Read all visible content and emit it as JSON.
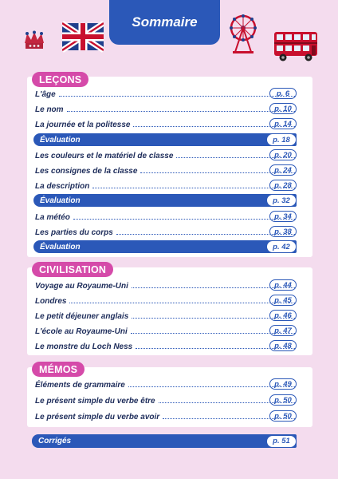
{
  "header": {
    "title": "Sommaire"
  },
  "sections": {
    "lecons": {
      "label": "LEÇONS",
      "items": [
        {
          "title": "L'âge",
          "page": "p. 6"
        },
        {
          "title": "Le nom",
          "page": "p. 10"
        },
        {
          "title": "La journée et la politesse",
          "page": "p. 14"
        },
        {
          "title": "Évaluation",
          "page": "p. 18"
        },
        {
          "title": "Les couleurs et le matériel de classe",
          "page": "p. 20"
        },
        {
          "title": "Les consignes de la classe",
          "page": "p. 24"
        },
        {
          "title": "La description",
          "page": "p. 28"
        },
        {
          "title": "Évaluation",
          "page": "p. 32"
        },
        {
          "title": "La météo",
          "page": "p. 34"
        },
        {
          "title": "Les parties du corps",
          "page": "p. 38"
        },
        {
          "title": "Évaluation",
          "page": "p. 42"
        }
      ]
    },
    "civilisation": {
      "label": "CIVILISATION",
      "items": [
        {
          "title": "Voyage au Royaume-Uni",
          "page": "p. 44"
        },
        {
          "title": "Londres",
          "page": "p. 45"
        },
        {
          "title": "Le petit déjeuner anglais",
          "page": "p. 46"
        },
        {
          "title": "L'école au Royaume-Uni",
          "page": "p. 47"
        },
        {
          "title": "Le monstre du Loch Ness",
          "page": "p. 48"
        }
      ]
    },
    "memos": {
      "label": "MÉMOS",
      "items": [
        {
          "title": "Éléments de grammaire",
          "page": "p. 49"
        },
        {
          "title": "Le présent simple du verbe être",
          "page": "p. 50"
        },
        {
          "title": "Le présent simple du verbe avoir",
          "page": "p. 50"
        }
      ]
    },
    "corriges": {
      "title": "Corrigés",
      "page": "p. 51"
    }
  },
  "icons": [
    "crown-icon",
    "union-jack-flag-icon",
    "london-eye-icon",
    "double-decker-bus-icon"
  ],
  "colors": {
    "background": "#f4dcee",
    "blue": "#2b58b8",
    "pink": "#d54aa9",
    "text": "#1d2c5a"
  }
}
